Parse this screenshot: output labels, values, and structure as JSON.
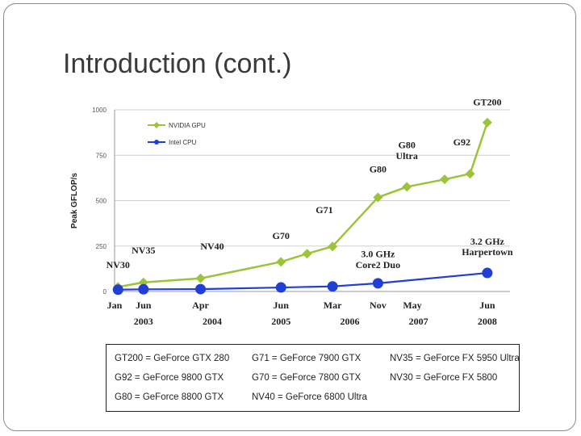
{
  "slide": {
    "title": "Introduction (cont.)"
  },
  "chart_data": {
    "type": "line",
    "title": "",
    "xlabel": "",
    "ylabel": "Peak GFLOP/s",
    "ylim": [
      0,
      1000
    ],
    "yticks": [
      0,
      250,
      500,
      750,
      1000
    ],
    "xlim": [
      2003.0,
      2008.75
    ],
    "x_month_labels": [
      {
        "label": "Jan",
        "x": 2003.0
      },
      {
        "label": "Jun",
        "x": 2003.42
      },
      {
        "label": "Apr",
        "x": 2004.25
      },
      {
        "label": "Jun",
        "x": 2005.42
      },
      {
        "label": "Mar",
        "x": 2006.17
      },
      {
        "label": "Nov",
        "x": 2006.83
      },
      {
        "label": "May",
        "x": 2007.33
      },
      {
        "label": "Jun",
        "x": 2008.42
      }
    ],
    "x_year_labels": [
      {
        "label": "2003",
        "x": 2003.42
      },
      {
        "label": "2004",
        "x": 2004.42
      },
      {
        "label": "2005",
        "x": 2005.42
      },
      {
        "label": "2006",
        "x": 2006.42
      },
      {
        "label": "2007",
        "x": 2007.42
      },
      {
        "label": "2008",
        "x": 2008.42
      }
    ],
    "series": [
      {
        "name": "NVIDIA GPU",
        "color": "#9bc438",
        "marker": "diamond",
        "points": [
          {
            "x": 2003.05,
            "y": 25
          },
          {
            "x": 2003.42,
            "y": 50
          },
          {
            "x": 2004.25,
            "y": 72
          },
          {
            "x": 2005.42,
            "y": 163
          },
          {
            "x": 2005.8,
            "y": 208
          },
          {
            "x": 2006.17,
            "y": 248
          },
          {
            "x": 2006.83,
            "y": 518
          },
          {
            "x": 2007.25,
            "y": 576
          },
          {
            "x": 2007.8,
            "y": 617
          },
          {
            "x": 2008.17,
            "y": 648
          },
          {
            "x": 2008.42,
            "y": 930
          }
        ]
      },
      {
        "name": "Intel CPU",
        "color": "#1f3fd6",
        "marker": "circle",
        "points": [
          {
            "x": 2003.05,
            "y": 10
          },
          {
            "x": 2003.42,
            "y": 12
          },
          {
            "x": 2004.25,
            "y": 13
          },
          {
            "x": 2005.42,
            "y": 22
          },
          {
            "x": 2006.17,
            "y": 28
          },
          {
            "x": 2006.83,
            "y": 45
          },
          {
            "x": 2008.42,
            "y": 102
          }
        ]
      }
    ],
    "annotations": [
      {
        "text": "GT200",
        "x": 2008.42,
        "y": 1025
      },
      {
        "text": "G92",
        "x": 2008.05,
        "y": 805
      },
      {
        "text": "G80",
        "x": 2007.25,
        "y": 790
      },
      {
        "text": "Ultra",
        "x": 2007.25,
        "y": 730
      },
      {
        "text": "G80",
        "x": 2006.83,
        "y": 655
      },
      {
        "text": "G71",
        "x": 2006.05,
        "y": 432
      },
      {
        "text": "G70",
        "x": 2005.42,
        "y": 290
      },
      {
        "text": "NV40",
        "x": 2004.42,
        "y": 232
      },
      {
        "text": "NV35",
        "x": 2003.42,
        "y": 208
      },
      {
        "text": "NV30",
        "x": 2003.05,
        "y": 128
      },
      {
        "text": "3.0 GHz",
        "x": 2006.83,
        "y": 188
      },
      {
        "text": "Core2 Duo",
        "x": 2006.83,
        "y": 128
      },
      {
        "text": "3.2 GHz",
        "x": 2008.42,
        "y": 258
      },
      {
        "text": "Harpertown",
        "x": 2008.42,
        "y": 200
      }
    ]
  },
  "legend_table": {
    "columns": [
      [
        "GT200 = GeForce GTX 280",
        "G92 = GeForce 9800 GTX",
        "G80 = GeForce 8800 GTX"
      ],
      [
        "G71 = GeForce 7900 GTX",
        "G70 = GeForce 7800 GTX",
        "NV40 = GeForce 6800 Ultra"
      ],
      [
        "NV35 = GeForce FX 5950 Ultra",
        "NV30 = GeForce FX 5800"
      ]
    ]
  }
}
